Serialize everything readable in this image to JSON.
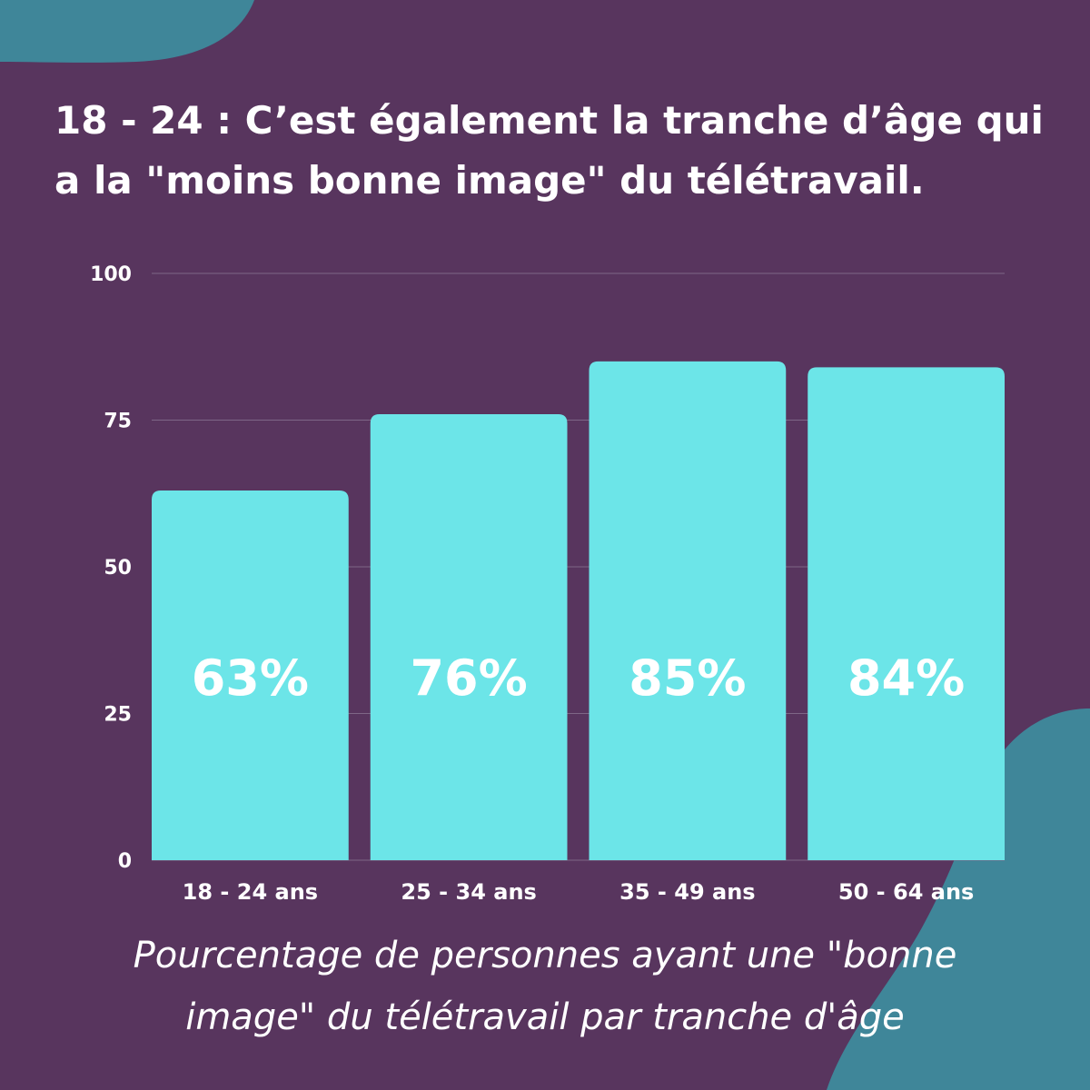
{
  "colors": {
    "background": "#58355e",
    "accent_blob": "#3f8699",
    "bar": "#6ce5e8",
    "text": "#ffffff",
    "grid": "#7e6687"
  },
  "headline": {
    "line1": "18 - 24 : C’est également la tranche d’âge qui",
    "line2": "a la \"moins bonne image\" du télétravail."
  },
  "caption": {
    "line1": "Pourcentage de personnes ayant une \"bonne",
    "line2": "image\" du télétravail par tranche d'âge"
  },
  "chart_data": {
    "type": "bar",
    "categories": [
      "18 - 24 ans",
      "25 - 34 ans",
      "35 - 49 ans",
      "50 - 64 ans"
    ],
    "values": [
      63,
      76,
      85,
      84
    ],
    "data_labels": [
      "63%",
      "76%",
      "85%",
      "84%"
    ],
    "ylim": [
      0,
      100
    ],
    "yticks": [
      0,
      25,
      50,
      75,
      100
    ],
    "grid": true,
    "legend": "none"
  }
}
